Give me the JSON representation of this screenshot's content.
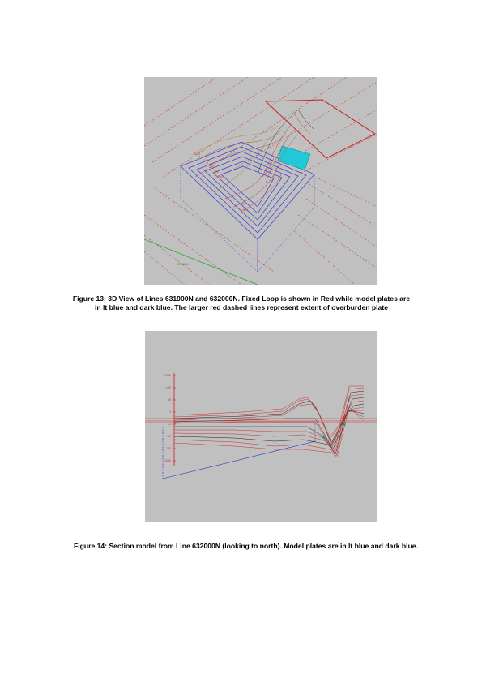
{
  "figure13": {
    "caption": "Figure 13:  3D View of Lines 631900N and 632000N.  Fixed Loop is shown in Red while model plates are in lt blue and dark blue.  The larger red dashed lines represent extent of overburden plate",
    "labels": [
      "-1000",
      "-1500",
      "100",
      "200",
      "-100",
      "-500",
      "600",
      "631900N"
    ],
    "colors": {
      "background": "#c0c0c0",
      "loop": "#cc2020",
      "plate_lt_blue": "#20c8d8",
      "plate_dark_blue": "#3a3ad0",
      "grid_line": "#20b020"
    }
  },
  "figure14": {
    "caption": "Figure 14:  Section model from Line 632000N (looking to north).  Model plates are in lt blue and dark blue.",
    "axis_labels": [
      "1000",
      "100",
      "10",
      "1",
      "-1",
      "-10",
      "-100",
      "-1000"
    ],
    "colors": {
      "background": "#c0c0c0",
      "profile_red": "#cc3030",
      "profile_black": "#202020",
      "plate_lt_blue": "#20c0c8",
      "plate_dark_blue": "#3030c0"
    }
  }
}
